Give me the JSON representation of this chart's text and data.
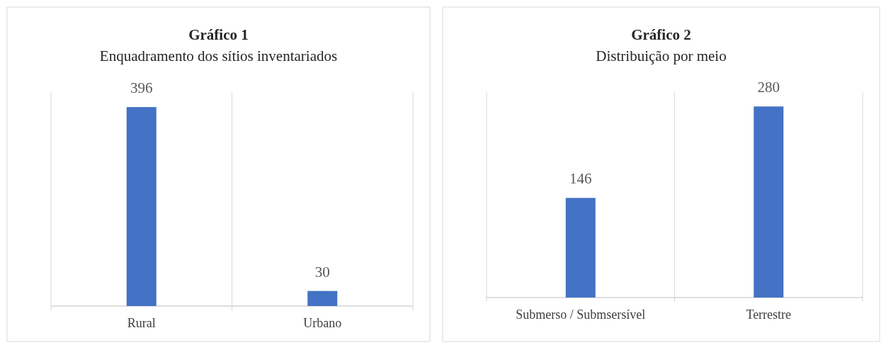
{
  "chart_data": [
    {
      "type": "bar",
      "title": "Gráfico 1",
      "subtitle": "Enquadramento dos sítios inventariados",
      "categories": [
        "Rural",
        "Urbano"
      ],
      "values": [
        396,
        30
      ],
      "color": "#4472c4",
      "data_labels": true,
      "grid": "x"
    },
    {
      "type": "bar",
      "title": "Gráfico 2",
      "subtitle": "Distribuição por meio",
      "categories": [
        "Submerso / Submsersível",
        "Terrestre"
      ],
      "values": [
        146,
        280
      ],
      "color": "#4472c4",
      "data_labels": true,
      "grid": "x"
    }
  ]
}
